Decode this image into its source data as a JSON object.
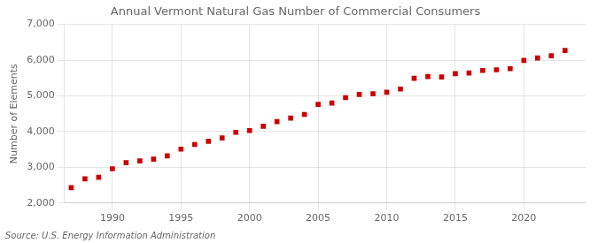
{
  "chart_data": {
    "type": "scatter",
    "title": "Annual Vermont Natural Gas Number of Commercial Consumers",
    "ylabel": "Number of Elements",
    "source": "Source: U.S. Energy Information Administration",
    "color": "#cc0000",
    "marker": "square",
    "grid": true,
    "xlim": [
      1986.5,
      2024.5
    ],
    "ylim": [
      2000,
      7000
    ],
    "xticks": [
      1990,
      1995,
      2000,
      2005,
      2010,
      2015,
      2020
    ],
    "yticks": [
      {
        "value": 2000,
        "label": "2,000"
      },
      {
        "value": 3000,
        "label": "3,000"
      },
      {
        "value": 4000,
        "label": "4,000"
      },
      {
        "value": 5000,
        "label": "5,000"
      },
      {
        "value": 6000,
        "label": "6,000"
      },
      {
        "value": 7000,
        "label": "7,000"
      }
    ],
    "x": [
      1987,
      1988,
      1989,
      1990,
      1991,
      1992,
      1993,
      1994,
      1995,
      1996,
      1997,
      1998,
      1999,
      2000,
      2001,
      2002,
      2003,
      2004,
      2005,
      2006,
      2007,
      2008,
      2009,
      2010,
      2011,
      2012,
      2013,
      2014,
      2015,
      2016,
      2017,
      2018,
      2019,
      2020,
      2021,
      2022,
      2023
    ],
    "values": [
      2430,
      2680,
      2720,
      2960,
      3130,
      3180,
      3230,
      3320,
      3510,
      3640,
      3730,
      3820,
      3980,
      4030,
      4150,
      4280,
      4380,
      4480,
      4760,
      4800,
      4950,
      5040,
      5060,
      5100,
      5190,
      5490,
      5540,
      5530,
      5620,
      5640,
      5710,
      5730,
      5760,
      5990,
      6060,
      6120,
      6270
    ]
  }
}
